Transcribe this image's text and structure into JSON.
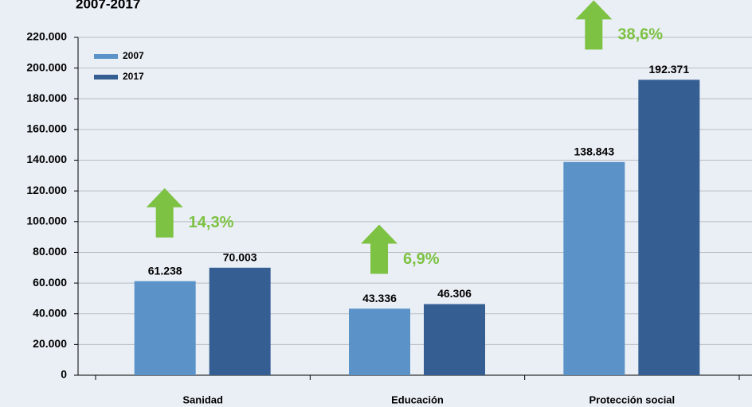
{
  "chart_data": {
    "type": "bar",
    "title": "2007-2017",
    "categories": [
      "Sanidad",
      "Educación",
      "Protección social"
    ],
    "series": [
      {
        "name": "2007",
        "color": "#5b93c8",
        "values": [
          61238,
          43336,
          138843
        ],
        "value_labels": [
          "61.238",
          "43.336",
          "138.843"
        ]
      },
      {
        "name": "2017",
        "color": "#355f93",
        "values": [
          70003,
          46306,
          192371
        ],
        "value_labels": [
          "70.003",
          "46.306",
          "192.371"
        ]
      }
    ],
    "annotations": [
      "14,3%",
      "6,9%",
      "38,6%"
    ],
    "annotation_color": "#7dc243",
    "ylim": [
      0,
      220000
    ],
    "yticks": [
      0,
      {
        "value": 20000,
        "label": "20.000"
      },
      {
        "value": 40000,
        "label": "40.000"
      },
      {
        "value": 60000,
        "label": "60.000"
      },
      {
        "value": 80000,
        "label": "80.000"
      },
      {
        "value": 100000,
        "label": "100.000"
      },
      {
        "value": 120000,
        "label": "120.000"
      },
      {
        "value": 140000,
        "label": "140.000"
      },
      {
        "value": 160000,
        "label": "160.000"
      },
      {
        "value": 180000,
        "label": "180.000"
      },
      {
        "value": 200000,
        "label": "200.000"
      },
      {
        "value": 220000,
        "label": "220.000"
      }
    ],
    "grid": true
  }
}
